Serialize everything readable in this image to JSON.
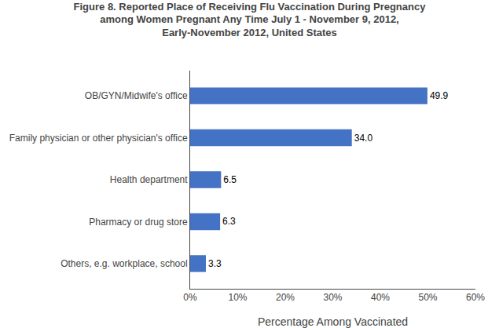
{
  "chart_data": {
    "type": "bar",
    "orientation": "horizontal",
    "title": "Figure 8. Reported Place of Receiving Flu Vaccination During Pregnancy\namong Women Pregnant Any Time July 1 - November 9, 2012,\nEarly-November 2012, United States",
    "categories": [
      "Others, e.g. workplace, school",
      "Pharmacy or drug store",
      "Health department",
      "Family physician or other physician's office",
      "OB/GYN/Midwife's office"
    ],
    "values": [
      3.3,
      6.3,
      6.5,
      34.0,
      49.9
    ],
    "value_labels": [
      "3.3",
      "6.3",
      "6.5",
      "34.0",
      "49.9"
    ],
    "data_labels": true,
    "color": "#4472C4",
    "xlabel": "Percentage Among Vaccinated",
    "xlim": [
      0,
      60
    ],
    "xticks": [
      {
        "value": 0,
        "label": "0%"
      },
      {
        "value": 10,
        "label": "10%"
      },
      {
        "value": 20,
        "label": "20%"
      },
      {
        "value": 30,
        "label": "30%"
      },
      {
        "value": 40,
        "label": "40%"
      },
      {
        "value": 50,
        "label": "50%"
      },
      {
        "value": 60,
        "label": "60%"
      }
    ],
    "grid": false
  }
}
